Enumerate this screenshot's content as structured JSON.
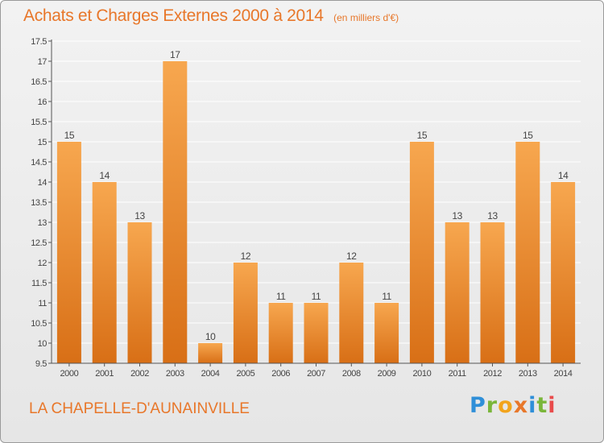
{
  "header": {
    "title": "Achats et Charges Externes 2000 à 2014",
    "unit": "(en milliers d'€)"
  },
  "footer": {
    "commune": "LA CHAPELLE-D'AUNAINVILLE",
    "logo": "Proxiti"
  },
  "colors": {
    "accent": "#e8772a",
    "bar_top": "#f7a74f",
    "bar_bottom": "#d86f16"
  },
  "chart_data": {
    "type": "bar",
    "categories": [
      "2000",
      "2001",
      "2002",
      "2003",
      "2004",
      "2005",
      "2006",
      "2007",
      "2008",
      "2009",
      "2010",
      "2011",
      "2012",
      "2013",
      "2014"
    ],
    "values": [
      15,
      14,
      13,
      17,
      10,
      12,
      11,
      11,
      12,
      11,
      15,
      13,
      13,
      15,
      14
    ],
    "data_labels": [
      "15",
      "14",
      "13",
      "17",
      "10",
      "12",
      "11",
      "11",
      "12",
      "11",
      "15",
      "13",
      "13",
      "15",
      "14"
    ],
    "title": "Achats et Charges Externes 2000 à 2014",
    "xlabel": "",
    "ylabel": "",
    "ylim": [
      9.5,
      17.5
    ],
    "yticks": [
      9.5,
      10,
      10.5,
      11,
      11.5,
      12,
      12.5,
      13,
      13.5,
      14,
      14.5,
      15,
      15.5,
      16,
      16.5,
      17,
      17.5
    ],
    "ytick_labels": [
      "9.5",
      "10",
      "10.5",
      "11",
      "11.5",
      "12",
      "12.5",
      "13",
      "13.5",
      "14",
      "14.5",
      "15",
      "15.5",
      "16",
      "16.5",
      "17",
      "17.5"
    ],
    "grid": true,
    "legend": "none"
  }
}
